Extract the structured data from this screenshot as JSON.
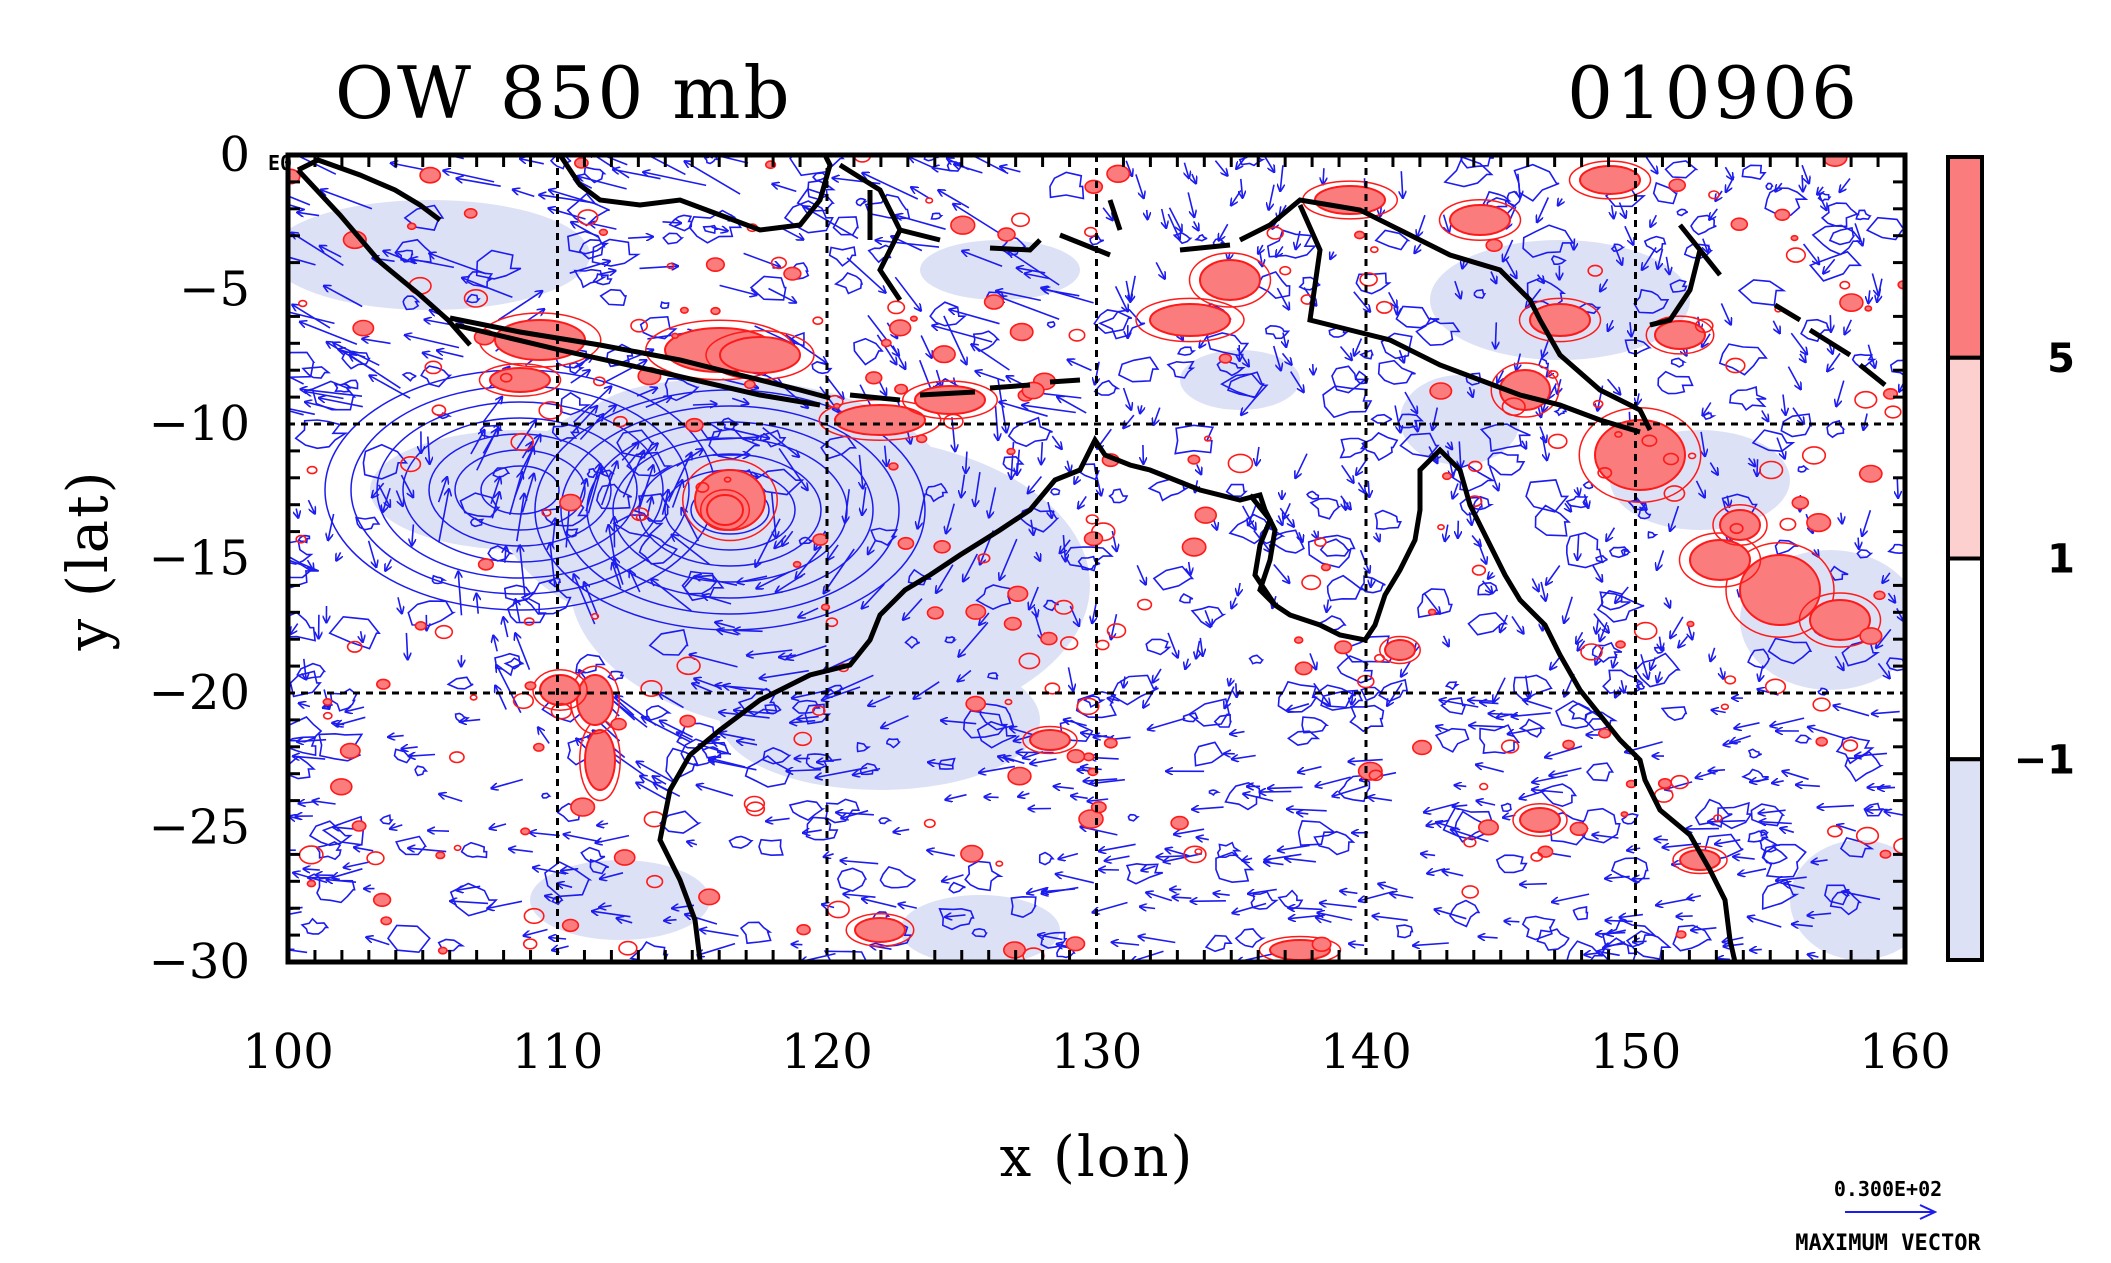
{
  "figure": {
    "title_left": "OW 850 mb",
    "title_right": "010906",
    "xlabel": "x (lon)",
    "ylabel": "y (lat)",
    "corner_label": "E0",
    "x_ticks": [
      "100",
      "110",
      "120",
      "130",
      "140",
      "150",
      "160"
    ],
    "y_ticks": [
      "0",
      "−5",
      "−10",
      "−15",
      "−20",
      "−25",
      "−30"
    ],
    "colorbar_ticks": [
      "5",
      "1",
      "−1"
    ],
    "vector_legend_value": "0.300E+02",
    "vector_legend_label": "MAXIMUM VECTOR"
  },
  "map": {
    "lon_range": [
      100,
      160
    ],
    "lat_range": [
      -30,
      0
    ],
    "grid_lon_every": 10,
    "grid_lat_every": 10,
    "grid": true
  },
  "colorbar": {
    "levels": [
      -1,
      1,
      5
    ],
    "colors": [
      "#dde1f5",
      "#ffffff",
      "#fdd0d0",
      "#fa7c7c"
    ]
  },
  "colors": {
    "vector": "#1c1cf0",
    "positive_contour": "#ff1a1a",
    "negative_contour": "#1c1cf0",
    "coastline": "#000000",
    "negative_fill": "#dde1f5",
    "positive_fill_strong": "#fa7c7c"
  }
}
